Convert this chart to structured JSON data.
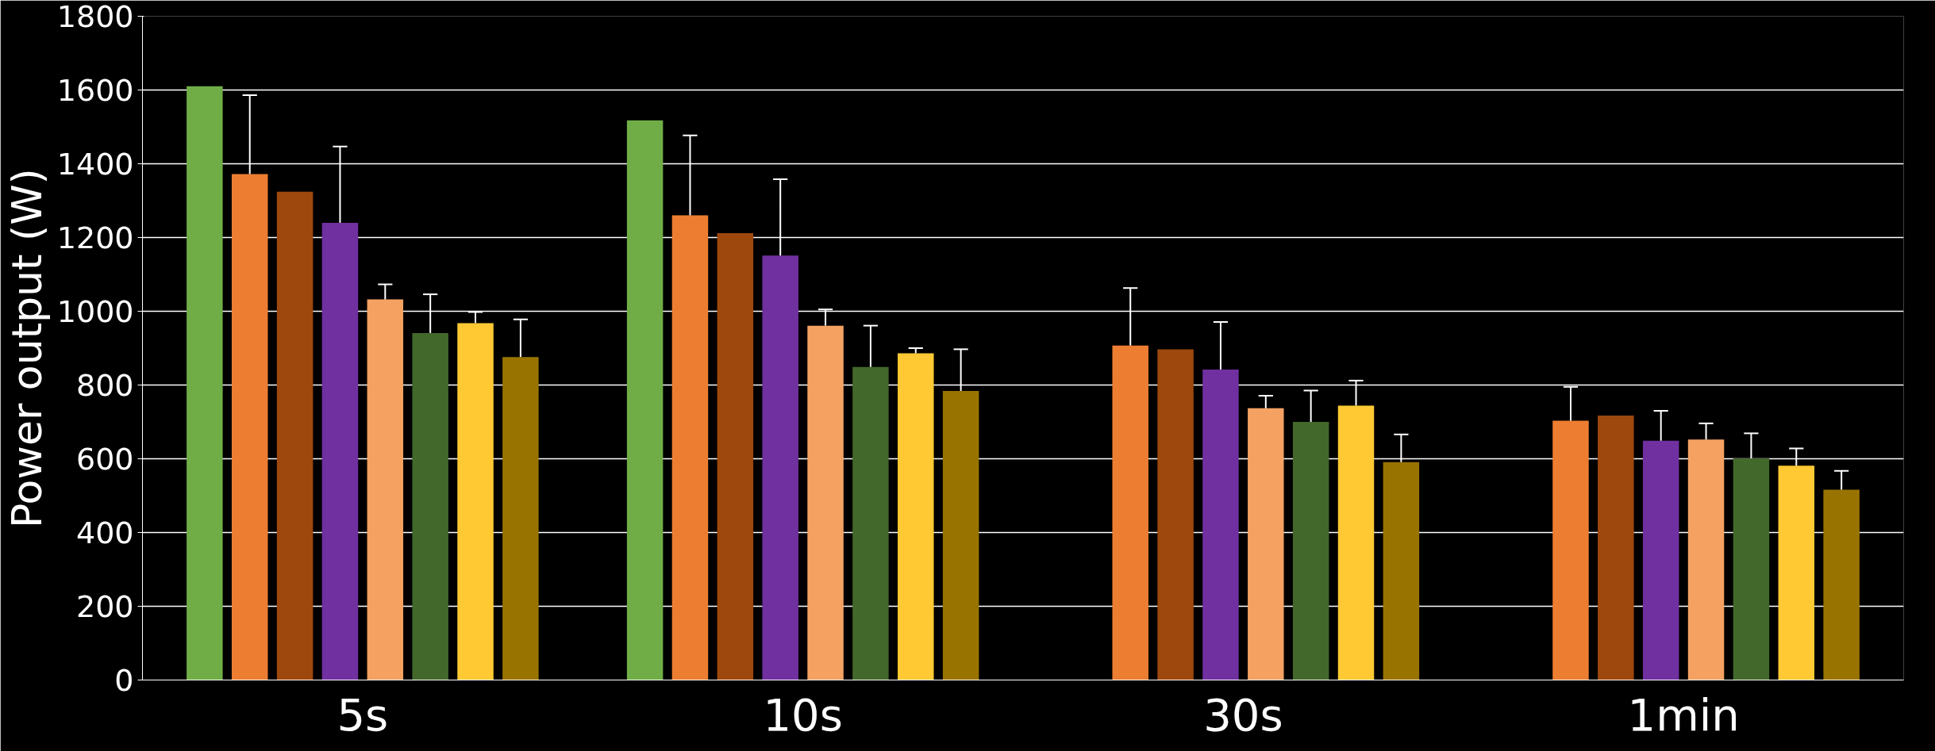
{
  "chart_data": {
    "type": "bar",
    "ylabel": "Power output (W)",
    "categories": [
      "5s",
      "10s",
      "30s",
      "1min"
    ],
    "series": [
      {
        "color": "#70ad47",
        "values": [
          1610,
          1518,
          null,
          null
        ],
        "errors": [
          null,
          null,
          null,
          null
        ]
      },
      {
        "color": "#ed7d31",
        "values": [
          1372,
          1260,
          907,
          703
        ],
        "errors": [
          [
            1372,
            1586
          ],
          [
            1260,
            1477
          ],
          [
            907,
            1063
          ],
          [
            703,
            795
          ]
        ]
      },
      {
        "color": "#9e480e",
        "values": [
          1324,
          1212,
          897,
          717
        ],
        "errors": [
          null,
          null,
          null,
          null
        ]
      },
      {
        "color": "#7030a0",
        "values": [
          1240,
          1151,
          842,
          649
        ],
        "errors": [
          [
            1240,
            1447
          ],
          [
            1151,
            1358
          ],
          [
            842,
            971
          ],
          [
            649,
            730
          ]
        ]
      },
      {
        "color": "#f4a162",
        "values": [
          1032,
          961,
          737,
          652
        ],
        "errors": [
          [
            1032,
            1073
          ],
          [
            961,
            1005
          ],
          [
            737,
            771
          ],
          [
            652,
            696
          ]
        ]
      },
      {
        "color": "#43682b",
        "values": [
          941,
          849,
          700,
          601
        ],
        "errors": [
          [
            941,
            1046
          ],
          [
            849,
            961
          ],
          [
            700,
            785
          ],
          [
            601,
            669
          ]
        ]
      },
      {
        "color": "#ffc933",
        "values": [
          968,
          886,
          744,
          581
        ],
        "errors": [
          [
            968,
            998
          ],
          [
            886,
            900
          ],
          [
            744,
            812
          ],
          [
            581,
            628
          ]
        ]
      },
      {
        "color": "#997300",
        "values": [
          876,
          784,
          591,
          516
        ],
        "errors": [
          [
            876,
            978
          ],
          [
            784,
            897
          ],
          [
            591,
            666
          ],
          [
            516,
            567
          ]
        ]
      }
    ],
    "ylim": [
      0,
      1800
    ],
    "yticks": [
      0,
      200,
      400,
      600,
      800,
      1000,
      1200,
      1400,
      1600,
      1800
    ],
    "grid": "y"
  }
}
